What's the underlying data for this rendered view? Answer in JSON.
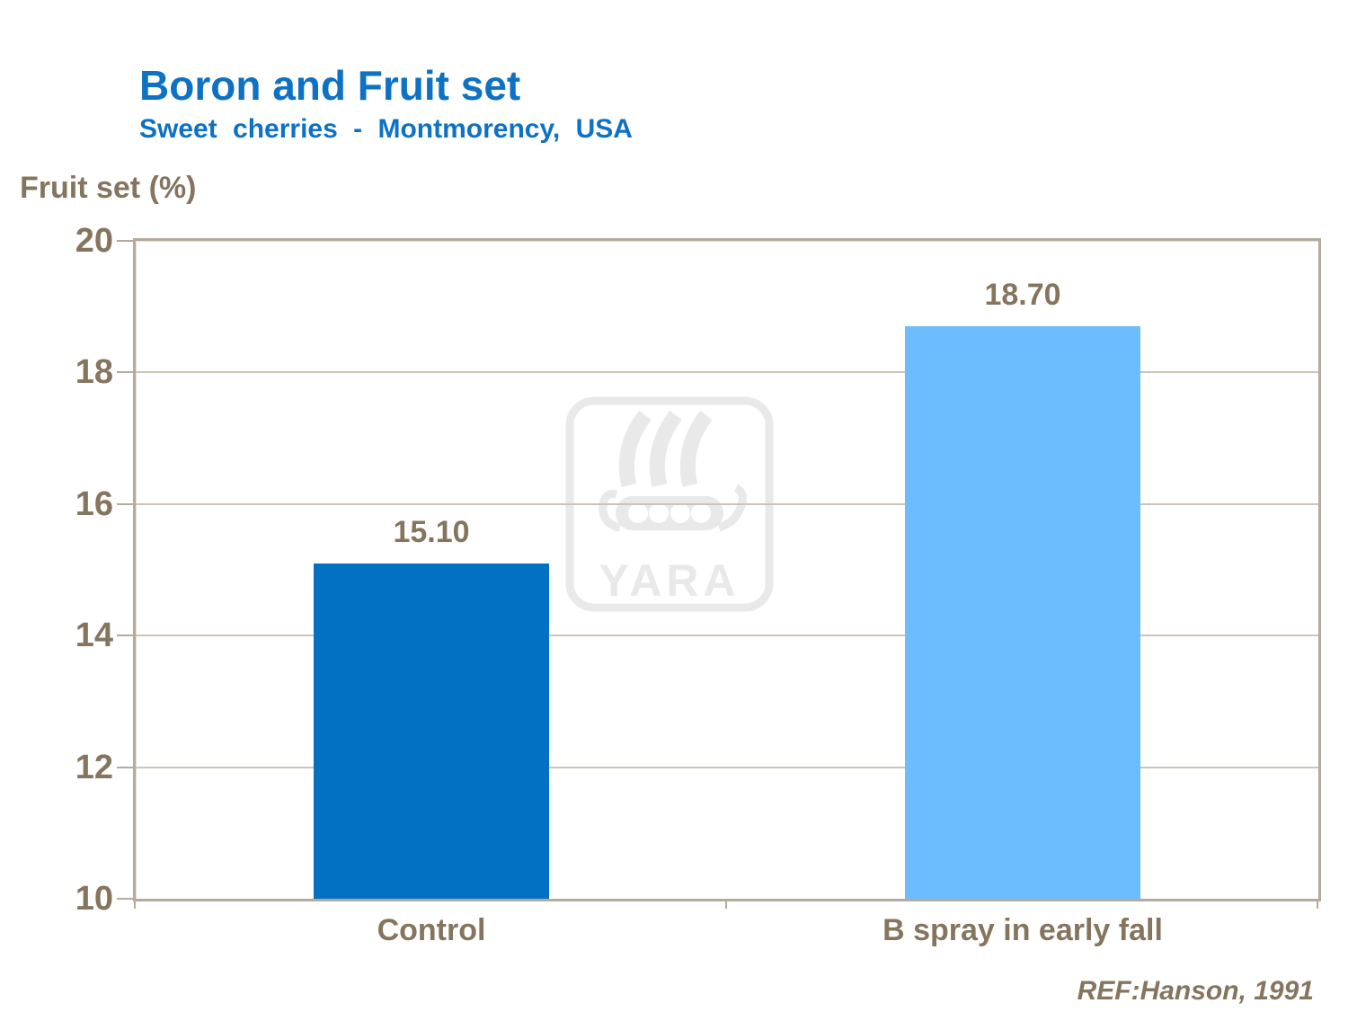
{
  "header": {
    "title": "Boron and Fruit set",
    "subtitle": "Sweet cherries - Montmorency, USA"
  },
  "chart_data": {
    "type": "bar",
    "title": "Boron and Fruit set",
    "subtitle": "Sweet cherries - Montmorency, USA",
    "ylabel": "Fruit set (%)",
    "xlabel": "",
    "categories": [
      "Control",
      "B spray in early fall"
    ],
    "values": [
      15.1,
      18.7
    ],
    "value_labels": [
      "15.10",
      "18.70"
    ],
    "ylim": [
      10,
      20
    ],
    "yticks": [
      10,
      12,
      14,
      16,
      18,
      20
    ],
    "grid": true,
    "legend": false,
    "bar_colors": [
      "#0271C3",
      "#6BBDFE"
    ],
    "grid_color": "#CCC4B6",
    "axis_color": "#B5AB9D",
    "text_color": "#86755E",
    "title_color": "#0E72C4"
  },
  "footer": {
    "reference": "REF:Hanson, 1991"
  },
  "watermark": {
    "label": "YARA",
    "color": "#E9E9E9"
  }
}
